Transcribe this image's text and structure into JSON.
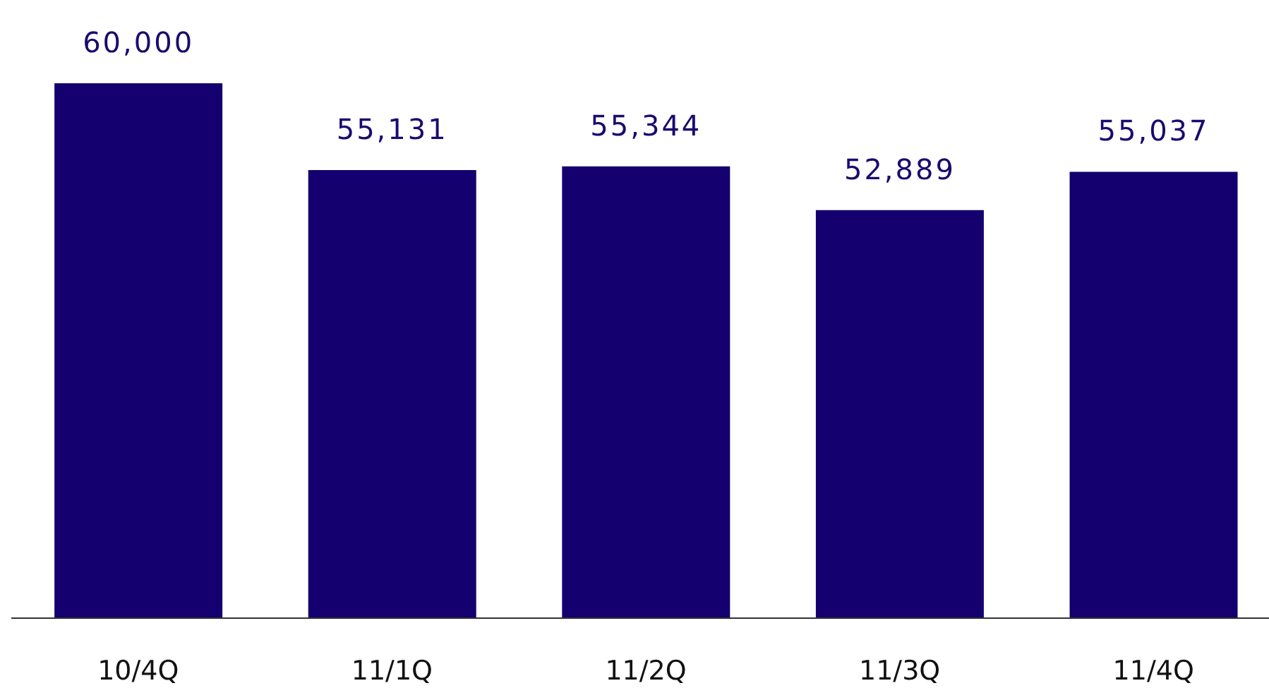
{
  "chart_data": {
    "type": "bar",
    "categories": [
      "10/4Q",
      "11/1Q",
      "11/2Q",
      "11/3Q",
      "11/4Q"
    ],
    "values": [
      60000,
      55131,
      55344,
      52889,
      55037
    ],
    "color": "#14006e",
    "ylim": [
      30000,
      60000
    ],
    "value_labels": [
      "60,000",
      "55,131",
      "55,344",
      "52,889",
      "55,037"
    ],
    "tick_labels": "x"
  }
}
